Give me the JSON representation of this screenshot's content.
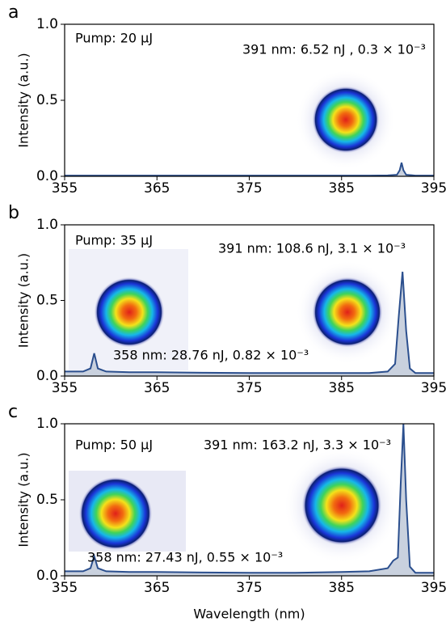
{
  "chart_data": [
    {
      "type": "line",
      "panel_label": "a",
      "y_label": "Intensity (a.u.)",
      "annotations": [
        "Pump: 20 μJ",
        "391 nm: 6.52 nJ , 0.3 × 10⁻³"
      ],
      "x": [
        355,
        357,
        360,
        365,
        370,
        375,
        380,
        385,
        388,
        390,
        391,
        391.3,
        391.5,
        391.7,
        392,
        393,
        395
      ],
      "values": [
        0.005,
        0.005,
        0.005,
        0.005,
        0.005,
        0.005,
        0.005,
        0.005,
        0.005,
        0.006,
        0.01,
        0.04,
        0.09,
        0.04,
        0.01,
        0.005,
        0.005
      ],
      "color": "#2b4f8e",
      "fill": "#c9d1de",
      "xlim": [
        355,
        395
      ],
      "xticks": [
        355,
        365,
        375,
        385,
        395
      ],
      "ylim": [
        0,
        1
      ],
      "yticks": [
        {
          "value": 0,
          "label": "0.0"
        },
        0.5,
        {
          "value": 1,
          "label": "1.0"
        }
      ]
    },
    {
      "type": "line",
      "panel_label": "b",
      "y_label": "Intensity (a.u.)",
      "annotations": [
        "Pump: 35 μJ",
        "391 nm: 108.6 nJ, 3.1 × 10⁻³",
        "358 nm: 28.76 nJ, 0.82 × 10⁻³"
      ],
      "x": [
        355,
        357,
        357.8,
        358.2,
        358.6,
        359.5,
        362,
        365,
        370,
        375,
        380,
        385,
        388,
        390,
        390.8,
        391.2,
        391.6,
        392,
        392.4,
        393,
        395
      ],
      "values": [
        0.03,
        0.03,
        0.05,
        0.15,
        0.05,
        0.03,
        0.025,
        0.025,
        0.022,
        0.02,
        0.02,
        0.02,
        0.02,
        0.03,
        0.08,
        0.4,
        0.69,
        0.3,
        0.05,
        0.02,
        0.02
      ],
      "color": "#2b4f8e",
      "fill": "#c9d1de",
      "xlim": [
        355,
        395
      ],
      "xticks": [
        355,
        365,
        375,
        385,
        395
      ],
      "ylim": [
        0,
        1
      ],
      "yticks": [
        {
          "value": 0,
          "label": "0.0"
        },
        0.5,
        {
          "value": 1,
          "label": "1.0"
        }
      ]
    },
    {
      "type": "line",
      "panel_label": "c",
      "y_label": "Intensity (a.u.)",
      "x_label": "Wavelength (nm)",
      "annotations": [
        "Pump: 50 μJ",
        "391 nm: 163.2 nJ, 3.3 × 10⁻³",
        "358 nm: 27.43 nJ, 0.55 × 10⁻³"
      ],
      "x": [
        355,
        357,
        357.8,
        358.2,
        358.6,
        359.5,
        362,
        365,
        370,
        375,
        380,
        385,
        388,
        390,
        390.6,
        391.1,
        391.4,
        391.7,
        392,
        392.4,
        393,
        395
      ],
      "values": [
        0.03,
        0.03,
        0.05,
        0.13,
        0.05,
        0.03,
        0.025,
        0.025,
        0.022,
        0.02,
        0.02,
        0.025,
        0.03,
        0.05,
        0.1,
        0.12,
        0.6,
        1.0,
        0.5,
        0.06,
        0.02,
        0.02
      ],
      "color": "#2b4f8e",
      "fill": "#c9d1de",
      "xlim": [
        355,
        395
      ],
      "xticks": [
        355,
        365,
        375,
        385,
        395
      ],
      "ylim": [
        0,
        1
      ],
      "yticks": [
        {
          "value": 0,
          "label": "0.0"
        },
        0.5,
        {
          "value": 1,
          "label": "1.0"
        }
      ]
    }
  ]
}
